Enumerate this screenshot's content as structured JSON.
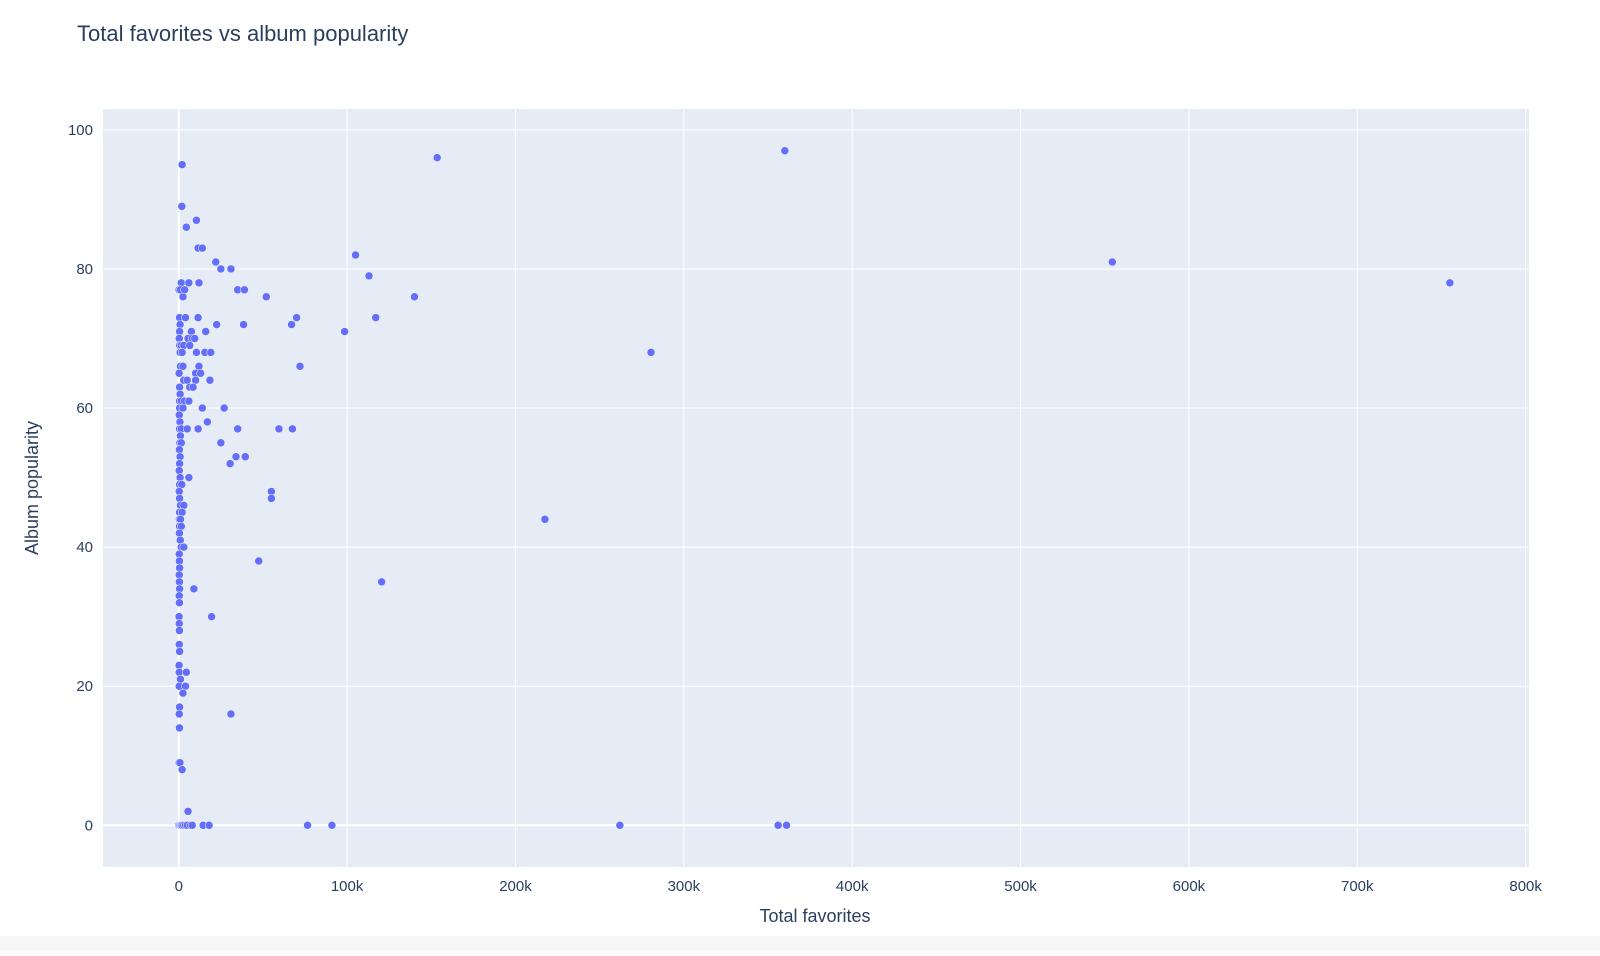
{
  "chart_data": {
    "type": "scatter",
    "title": "Total favorites vs album popularity",
    "xlabel": "Total favorites",
    "ylabel": "Album popularity",
    "xlim": [
      -45000,
      802000
    ],
    "ylim": [
      -6,
      103
    ],
    "xticks": [
      0,
      100000,
      200000,
      300000,
      400000,
      500000,
      600000,
      700000,
      800000
    ],
    "xtick_labels": [
      "0",
      "100k",
      "200k",
      "300k",
      "400k",
      "500k",
      "600k",
      "700k",
      "800k"
    ],
    "yticks": [
      0,
      20,
      40,
      60,
      80,
      100
    ],
    "ytick_labels": [
      "0",
      "20",
      "40",
      "60",
      "80",
      "100"
    ],
    "grid": true,
    "colors": {
      "marker": "#636efa",
      "plot_bg": "#e5ecf6",
      "grid": "#ffffff",
      "text": "#2a3f5f"
    },
    "points": [
      [
        2000,
        95
      ],
      [
        1800,
        89
      ],
      [
        4500,
        86
      ],
      [
        10500,
        87
      ],
      [
        11500,
        83
      ],
      [
        14000,
        83
      ],
      [
        22000,
        81
      ],
      [
        25000,
        80
      ],
      [
        31000,
        80
      ],
      [
        1500,
        78
      ],
      [
        6000,
        78
      ],
      [
        12000,
        78
      ],
      [
        200,
        77
      ],
      [
        1000,
        77
      ],
      [
        2500,
        76
      ],
      [
        3500,
        77
      ],
      [
        35000,
        77
      ],
      [
        39000,
        77
      ],
      [
        52000,
        76
      ],
      [
        500,
        73
      ],
      [
        4000,
        73
      ],
      [
        11500,
        73
      ],
      [
        70000,
        73
      ],
      [
        67000,
        72
      ],
      [
        38500,
        72
      ],
      [
        22500,
        72
      ],
      [
        800,
        72
      ],
      [
        500,
        71
      ],
      [
        7500,
        71
      ],
      [
        16000,
        71
      ],
      [
        300,
        70
      ],
      [
        5500,
        70
      ],
      [
        8000,
        70
      ],
      [
        9500,
        70
      ],
      [
        600,
        69
      ],
      [
        1500,
        69
      ],
      [
        3000,
        69
      ],
      [
        6500,
        69
      ],
      [
        800,
        68
      ],
      [
        2000,
        68
      ],
      [
        10500,
        68
      ],
      [
        15500,
        68
      ],
      [
        19000,
        68
      ],
      [
        1000,
        66
      ],
      [
        2500,
        66
      ],
      [
        12000,
        66
      ],
      [
        72000,
        66
      ],
      [
        200,
        65
      ],
      [
        10000,
        65
      ],
      [
        13000,
        65
      ],
      [
        3000,
        64
      ],
      [
        5000,
        64
      ],
      [
        10000,
        64
      ],
      [
        18500,
        64
      ],
      [
        500,
        63
      ],
      [
        6500,
        63
      ],
      [
        8500,
        63
      ],
      [
        800,
        62
      ],
      [
        500,
        61
      ],
      [
        1500,
        61
      ],
      [
        3500,
        61
      ],
      [
        6000,
        61
      ],
      [
        500,
        60
      ],
      [
        2500,
        60
      ],
      [
        14000,
        60
      ],
      [
        27000,
        60
      ],
      [
        300,
        59
      ],
      [
        700,
        58
      ],
      [
        17000,
        58
      ],
      [
        500,
        57
      ],
      [
        1500,
        57
      ],
      [
        5000,
        57
      ],
      [
        11500,
        57
      ],
      [
        35000,
        57
      ],
      [
        59500,
        57
      ],
      [
        67500,
        57
      ],
      [
        1000,
        56
      ],
      [
        700,
        55
      ],
      [
        1500,
        55
      ],
      [
        25000,
        55
      ],
      [
        400,
        54
      ],
      [
        800,
        53
      ],
      [
        34000,
        53
      ],
      [
        39500,
        53
      ],
      [
        500,
        52
      ],
      [
        30500,
        52
      ],
      [
        300,
        51
      ],
      [
        800,
        50
      ],
      [
        6000,
        50
      ],
      [
        500,
        49
      ],
      [
        1800,
        49
      ],
      [
        300,
        48
      ],
      [
        55000,
        48
      ],
      [
        500,
        47
      ],
      [
        55000,
        47
      ],
      [
        1000,
        46
      ],
      [
        3000,
        46
      ],
      [
        500,
        45
      ],
      [
        2000,
        45
      ],
      [
        400,
        44
      ],
      [
        1000,
        44
      ],
      [
        500,
        43
      ],
      [
        1500,
        43
      ],
      [
        400,
        42
      ],
      [
        900,
        41
      ],
      [
        1500,
        40
      ],
      [
        3000,
        40
      ],
      [
        300,
        39
      ],
      [
        400,
        38
      ],
      [
        47500,
        38
      ],
      [
        500,
        37
      ],
      [
        300,
        36
      ],
      [
        400,
        35
      ],
      [
        500,
        34
      ],
      [
        9000,
        34
      ],
      [
        300,
        33
      ],
      [
        400,
        32
      ],
      [
        200,
        30
      ],
      [
        19500,
        30
      ],
      [
        300,
        29
      ],
      [
        400,
        28
      ],
      [
        300,
        26
      ],
      [
        500,
        25
      ],
      [
        200,
        23
      ],
      [
        300,
        22
      ],
      [
        4500,
        22
      ],
      [
        1000,
        21
      ],
      [
        300,
        20
      ],
      [
        4000,
        20
      ],
      [
        2500,
        19
      ],
      [
        500,
        17
      ],
      [
        300,
        16
      ],
      [
        31000,
        16
      ],
      [
        400,
        14
      ],
      [
        200,
        9
      ],
      [
        700,
        9
      ],
      [
        2000,
        8
      ],
      [
        5500,
        2
      ],
      [
        0,
        0
      ],
      [
        500,
        0
      ],
      [
        1000,
        0
      ],
      [
        1500,
        0
      ],
      [
        2000,
        0
      ],
      [
        3000,
        0
      ],
      [
        4000,
        0
      ],
      [
        5000,
        0
      ],
      [
        7000,
        0
      ],
      [
        8000,
        0
      ],
      [
        14500,
        0
      ],
      [
        18000,
        0
      ],
      [
        76500,
        0
      ],
      [
        91000,
        0
      ],
      [
        262000,
        0
      ],
      [
        356000,
        0
      ],
      [
        361000,
        0
      ],
      [
        153500,
        96
      ],
      [
        360000,
        97
      ],
      [
        105000,
        82
      ],
      [
        113000,
        79
      ],
      [
        140000,
        76
      ],
      [
        117000,
        73
      ],
      [
        98500,
        71
      ],
      [
        280500,
        68
      ],
      [
        217500,
        44
      ],
      [
        120500,
        35
      ],
      [
        554500,
        81
      ],
      [
        755000,
        78
      ]
    ]
  }
}
